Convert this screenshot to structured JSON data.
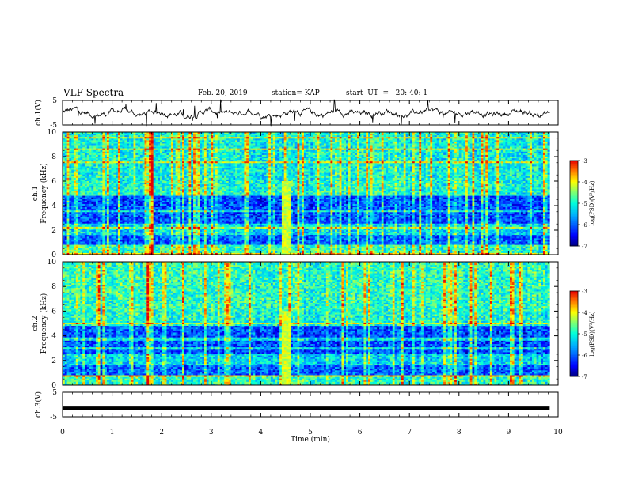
{
  "header": {
    "title": "VLF Spectra",
    "date": "Feb. 20, 2019",
    "station": "station= KAP",
    "start": "start  UT  =   20: 40: 1"
  },
  "chart_data": [
    {
      "type": "line",
      "panel": "ch1-waveform",
      "ylabel": "ch.1(V)",
      "ylim": [
        -5,
        5
      ],
      "yticks": [
        "5",
        "-5"
      ],
      "xlim": [
        0,
        10
      ]
    },
    {
      "type": "heatmap",
      "panel": "ch1-spectrogram",
      "ylabel_line1": "ch.1",
      "ylabel_line2": "Frequency  (kHz)",
      "ylim": [
        0,
        10
      ],
      "yticks": [
        "0",
        "2",
        "4",
        "6",
        "8",
        "10"
      ],
      "xlim": [
        0,
        10
      ],
      "data_extent_min": 9.83,
      "colorbar": {
        "label": "log(PSD)(V²/Hz)",
        "ticks": [
          "-3",
          "-4",
          "-5",
          "-6",
          "-7"
        ],
        "range": [
          -7,
          -3
        ]
      }
    },
    {
      "type": "heatmap",
      "panel": "ch2-spectrogram",
      "ylabel_line1": "ch.2",
      "ylabel_line2": "Frequency  (kHz)",
      "ylim": [
        0,
        10
      ],
      "yticks": [
        "0",
        "2",
        "4",
        "6",
        "8",
        "10"
      ],
      "xlim": [
        0,
        10
      ],
      "data_extent_min": 9.83,
      "colorbar": {
        "label": "log(PSD)(V²/Hz)",
        "ticks": [
          "-3",
          "-4",
          "-5",
          "-6",
          "-7"
        ],
        "range": [
          -7,
          -3
        ]
      }
    },
    {
      "type": "line",
      "panel": "ch3-waveform",
      "ylabel": "ch.3(V)",
      "ylim": [
        -5,
        5
      ],
      "yticks": [
        "5",
        "-5"
      ],
      "xlim": [
        0,
        10
      ],
      "constant_value": -1.5
    }
  ],
  "xaxis": {
    "label": "Time  (min)",
    "ticks": [
      "0",
      "1",
      "2",
      "3",
      "4",
      "5",
      "6",
      "7",
      "8",
      "9",
      "10"
    ]
  },
  "colors": {
    "line": "#000000",
    "colormap": [
      "#000080",
      "#0000ff",
      "#00a0ff",
      "#00ffff",
      "#80ff80",
      "#ffff00",
      "#ff8000",
      "#ff0000",
      "#ffffff"
    ]
  }
}
